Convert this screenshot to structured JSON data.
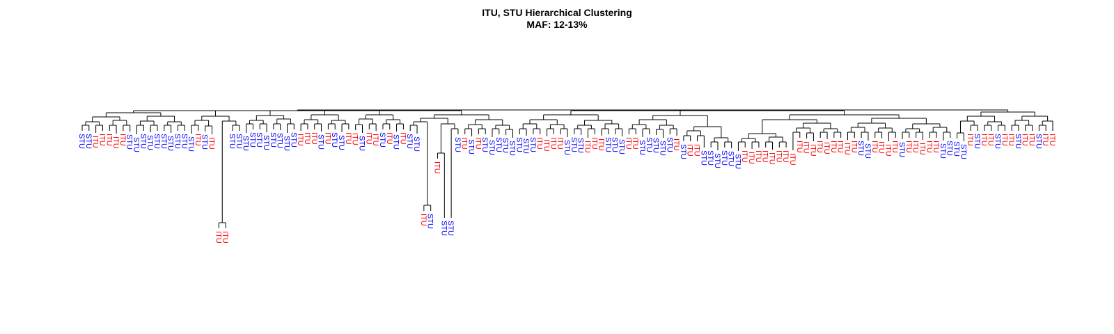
{
  "chart_data": {
    "type": "dendrogram",
    "title": "ITU, STU Hierarchical Clustering",
    "subtitle": "MAF: 12-13%",
    "colors": {
      "ITU": "#ff0000",
      "STU": "#0000ff",
      "branch": "#000000"
    },
    "leaves": [
      "STU",
      "STU",
      "ITU",
      "ITU",
      "ITU",
      "ITU",
      "ITU",
      "STU",
      "STU",
      "STU",
      "STU",
      "STU",
      "STU",
      "STU",
      "STU",
      "STU",
      "STU",
      "ITU",
      "STU",
      "ITU",
      "ITU",
      "ITU",
      "STU",
      "STU",
      "STU",
      "STU",
      "STU",
      "STU",
      "STU",
      "STU",
      "STU",
      "STU",
      "ITU",
      "ITU",
      "ITU",
      "STU",
      "ITU",
      "STU",
      "STU",
      "ITU",
      "ITU",
      "STU",
      "ITU",
      "ITU",
      "STU",
      "ITU",
      "STU",
      "ITU",
      "STU",
      "STU",
      "ITU",
      "STU",
      "ITU",
      "STU",
      "STU",
      "STU",
      "ITU",
      "STU",
      "ITU",
      "STU",
      "STU",
      "STU",
      "STU",
      "STU",
      "STU",
      "STU",
      "STU",
      "ITU",
      "ITU",
      "ITU",
      "ITU",
      "STU",
      "STU",
      "STU",
      "ITU",
      "ITU",
      "ITU",
      "STU",
      "STU",
      "STU",
      "ITU",
      "ITU",
      "STU",
      "STU",
      "STU",
      "STU",
      "STU",
      "ITU",
      "STU",
      "ITU",
      "ITU",
      "STU",
      "STU",
      "STU",
      "STU",
      "STU",
      "STU",
      "ITU",
      "ITU",
      "ITU",
      "ITU",
      "ITU",
      "ITU",
      "ITU",
      "ITU",
      "ITU",
      "ITU",
      "ITU",
      "ITU",
      "ITU",
      "ITU",
      "ITU",
      "ITU",
      "ITU",
      "STU",
      "STU",
      "ITU",
      "ITU",
      "ITU",
      "ITU",
      "STU",
      "ITU",
      "ITU",
      "ITU",
      "ITU",
      "ITU",
      "STU",
      "STU",
      "STU",
      "STU",
      "ITU",
      "STU",
      "ITU",
      "ITU",
      "STU",
      "ITU",
      "ITU",
      "STU",
      "ITU",
      "ITU",
      "STU",
      "ITU",
      "ITU"
    ]
  }
}
